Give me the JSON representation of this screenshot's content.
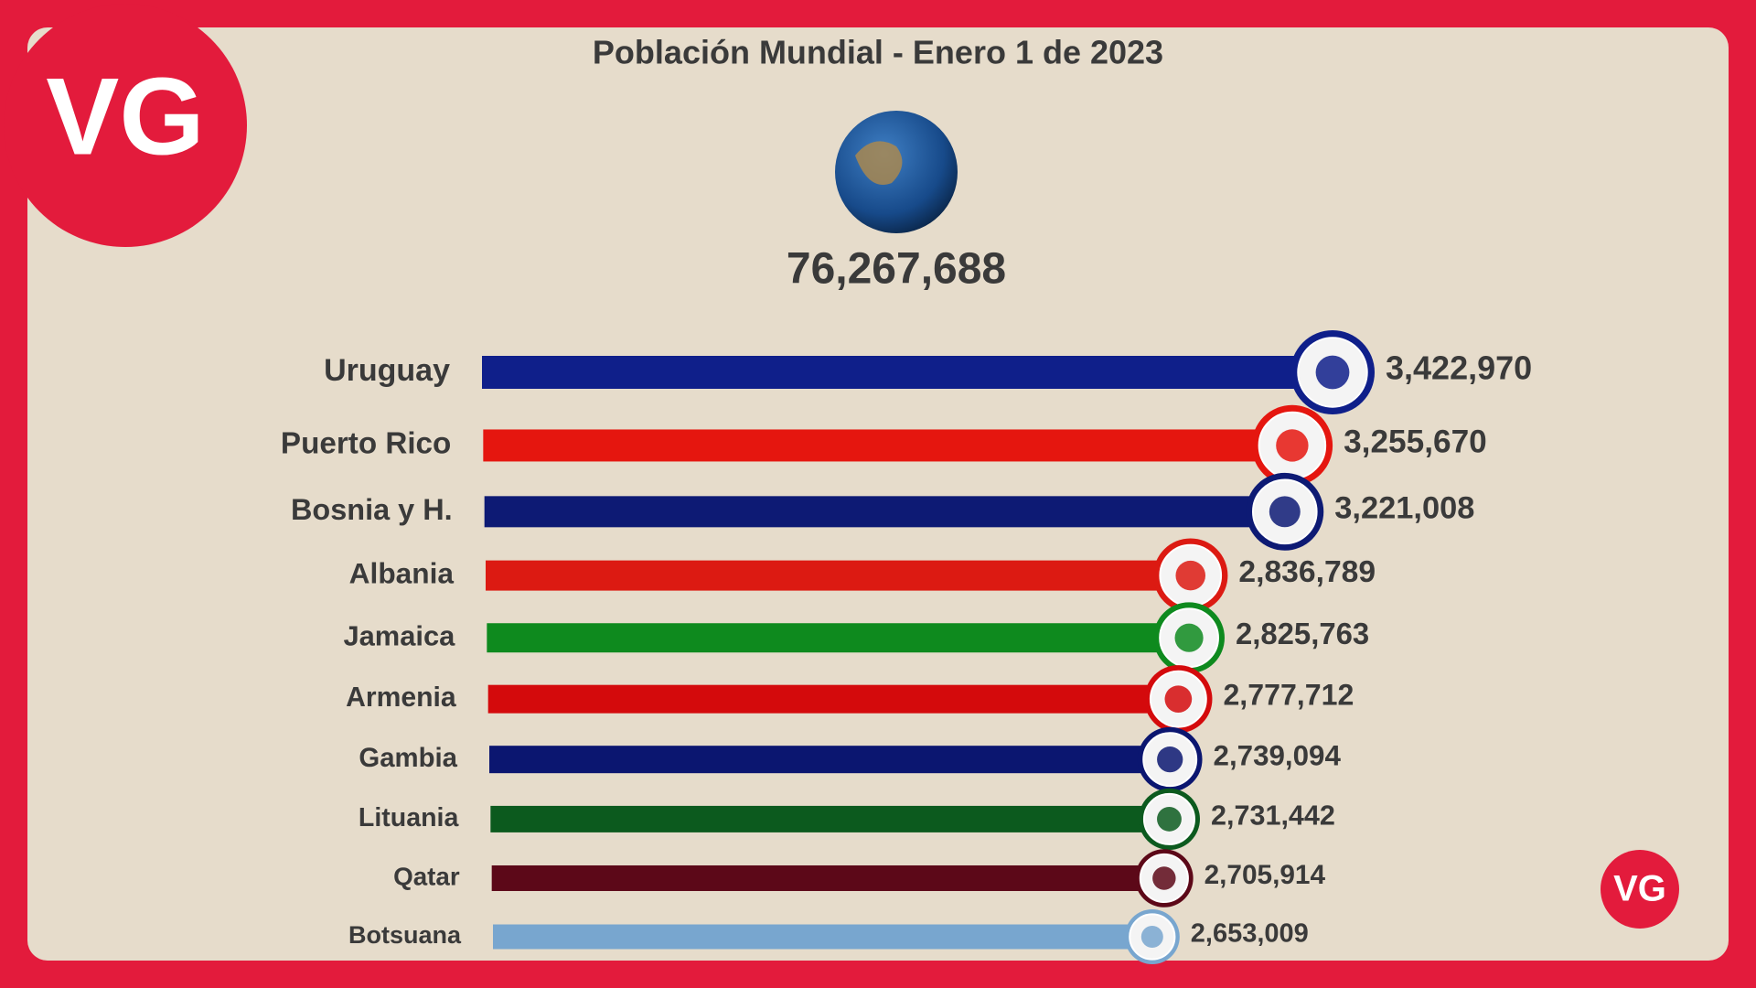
{
  "chart_data": {
    "type": "bar",
    "orientation": "horizontal",
    "title": "Población Mundial - Enero 1 de 2023",
    "total": "76,267,688",
    "logo": "VG",
    "categories": [
      "Uruguay",
      "Puerto Rico",
      "Bosnia y H.",
      "Albania",
      "Jamaica",
      "Armenia",
      "Gambia",
      "Lituania",
      "Qatar",
      "Botsuana"
    ],
    "values": [
      3422970,
      3255670,
      3221008,
      2836789,
      2825763,
      2777712,
      2739094,
      2731442,
      2705914,
      2653009
    ],
    "value_labels": [
      "3,422,970",
      "3,255,670",
      "3,221,008",
      "2,836,789",
      "2,825,763",
      "2,777,712",
      "2,739,094",
      "2,731,442",
      "2,705,914",
      "2,653,009"
    ],
    "colors": [
      "#0f1f8a",
      "#e5160f",
      "#0d1a74",
      "#dc1a12",
      "#0e8a1e",
      "#d40a0c",
      "#0b1670",
      "#0c5a1e",
      "#5c0818",
      "#78a6cf"
    ]
  }
}
